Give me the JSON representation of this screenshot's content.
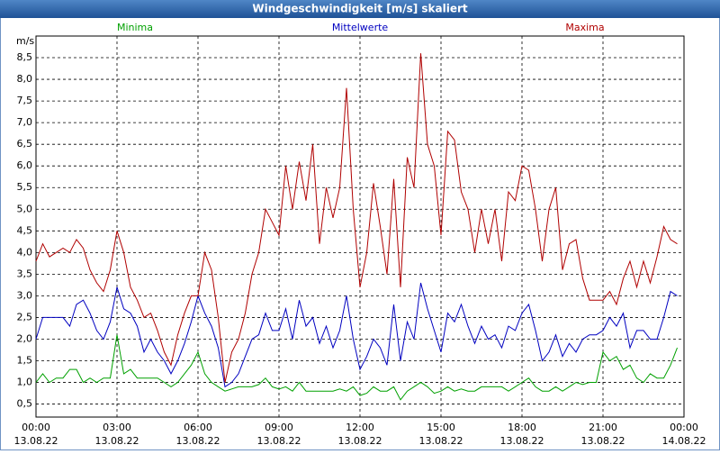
{
  "chart_data": {
    "type": "line",
    "title": "Windgeschwindigkeit [m/s] skaliert",
    "y_unit": "m/s",
    "x": [
      0,
      0.25,
      0.5,
      0.75,
      1,
      1.25,
      1.5,
      1.75,
      2,
      2.25,
      2.5,
      2.75,
      3,
      3.25,
      3.5,
      3.75,
      4,
      4.25,
      4.5,
      4.75,
      5,
      5.25,
      5.5,
      5.75,
      6,
      6.25,
      6.5,
      6.75,
      7,
      7.25,
      7.5,
      7.75,
      8,
      8.25,
      8.5,
      8.75,
      9,
      9.25,
      9.5,
      9.75,
      10,
      10.25,
      10.5,
      10.75,
      11,
      11.25,
      11.5,
      11.75,
      12,
      12.25,
      12.5,
      12.75,
      13,
      13.25,
      13.5,
      13.75,
      14,
      14.25,
      14.5,
      14.75,
      15,
      15.25,
      15.5,
      15.75,
      16,
      16.25,
      16.5,
      16.75,
      17,
      17.25,
      17.5,
      17.75,
      18,
      18.25,
      18.5,
      18.75,
      19,
      19.25,
      19.5,
      19.75,
      20,
      20.25,
      20.5,
      20.75,
      21,
      21.25,
      21.5,
      21.75,
      22,
      22.25,
      22.5,
      22.75,
      23,
      23.25,
      23.5,
      23.75
    ],
    "series": [
      {
        "name": "Minima",
        "color": "#00a000",
        "values": [
          1.0,
          1.2,
          1.0,
          1.1,
          1.1,
          1.3,
          1.3,
          1.0,
          1.1,
          1.0,
          1.1,
          1.1,
          2.1,
          1.2,
          1.3,
          1.1,
          1.1,
          1.1,
          1.1,
          1.0,
          0.9,
          1.0,
          1.2,
          1.4,
          1.7,
          1.2,
          1.0,
          0.9,
          0.8,
          0.85,
          0.9,
          0.9,
          0.9,
          0.95,
          1.1,
          0.9,
          0.85,
          0.9,
          0.8,
          1.0,
          0.8,
          0.8,
          0.8,
          0.8,
          0.8,
          0.85,
          0.8,
          0.9,
          0.7,
          0.75,
          0.9,
          0.8,
          0.8,
          0.9,
          0.6,
          0.8,
          0.9,
          1.0,
          0.9,
          0.75,
          0.8,
          0.9,
          0.8,
          0.85,
          0.8,
          0.8,
          0.9,
          0.9,
          0.9,
          0.9,
          0.8,
          0.9,
          1.0,
          1.1,
          0.9,
          0.8,
          0.8,
          0.9,
          0.8,
          0.9,
          1.0,
          0.95,
          1.0,
          1.0,
          1.7,
          1.5,
          1.6,
          1.3,
          1.4,
          1.1,
          1.0,
          1.2,
          1.1,
          1.1,
          1.4,
          1.8
        ]
      },
      {
        "name": "Mittelwerte",
        "color": "#0000c0",
        "values": [
          2.0,
          2.5,
          2.5,
          2.5,
          2.5,
          2.3,
          2.8,
          2.9,
          2.6,
          2.2,
          2.0,
          2.4,
          3.2,
          2.7,
          2.6,
          2.3,
          1.7,
          2.0,
          1.7,
          1.5,
          1.2,
          1.5,
          1.9,
          2.4,
          3.0,
          2.6,
          2.3,
          1.8,
          0.9,
          1.0,
          1.2,
          1.6,
          2.0,
          2.1,
          2.6,
          2.2,
          2.2,
          2.7,
          2.0,
          2.9,
          2.3,
          2.5,
          1.9,
          2.3,
          1.8,
          2.2,
          3.0,
          2.0,
          1.3,
          1.6,
          2.0,
          1.8,
          1.4,
          2.8,
          1.5,
          2.4,
          2.0,
          3.3,
          2.7,
          2.2,
          1.7,
          2.6,
          2.4,
          2.8,
          2.3,
          1.9,
          2.3,
          2.0,
          2.1,
          1.8,
          2.3,
          2.2,
          2.6,
          2.8,
          2.2,
          1.5,
          1.7,
          2.1,
          1.6,
          1.9,
          1.7,
          2.0,
          2.1,
          2.1,
          2.2,
          2.5,
          2.3,
          2.6,
          1.8,
          2.2,
          2.2,
          2.0,
          2.0,
          2.5,
          3.1,
          3.0
        ]
      },
      {
        "name": "Maxima",
        "color": "#b00000",
        "values": [
          3.8,
          4.2,
          3.9,
          4.0,
          4.1,
          4.0,
          4.3,
          4.1,
          3.6,
          3.3,
          3.1,
          3.6,
          4.5,
          4.0,
          3.2,
          2.9,
          2.5,
          2.6,
          2.2,
          1.7,
          1.4,
          2.1,
          2.6,
          3.0,
          3.0,
          4.0,
          3.6,
          2.5,
          1.0,
          1.7,
          2.0,
          2.6,
          3.5,
          4.0,
          5.0,
          4.7,
          4.4,
          6.0,
          5.0,
          6.1,
          5.2,
          6.5,
          4.2,
          5.5,
          4.8,
          5.5,
          7.8,
          5.0,
          3.2,
          4.0,
          5.6,
          4.6,
          3.5,
          5.7,
          3.2,
          6.2,
          5.5,
          8.6,
          6.5,
          6.0,
          4.4,
          6.8,
          6.6,
          5.4,
          5.0,
          4.0,
          5.0,
          4.2,
          5.0,
          3.8,
          5.4,
          5.2,
          6.0,
          5.9,
          5.0,
          3.8,
          5.0,
          5.5,
          3.6,
          4.2,
          4.3,
          3.4,
          2.9,
          2.9,
          2.9,
          3.1,
          2.8,
          3.4,
          3.8,
          3.2,
          3.8,
          3.3,
          3.9,
          4.6,
          4.3,
          4.2
        ]
      }
    ],
    "xlim": [
      0,
      24
    ],
    "xticks": [
      {
        "value": 0,
        "label": "00:00"
      },
      {
        "value": 3,
        "label": "03:00"
      },
      {
        "value": 6,
        "label": "06:00"
      },
      {
        "value": 9,
        "label": "09:00"
      },
      {
        "value": 12,
        "label": "12:00"
      },
      {
        "value": 15,
        "label": "15:00"
      },
      {
        "value": 18,
        "label": "18:00"
      },
      {
        "value": 21,
        "label": "21:00"
      },
      {
        "value": 24,
        "label": "00:00"
      }
    ],
    "xtick_dates": [
      "13.08.22",
      "13.08.22",
      "13.08.22",
      "13.08.22",
      "13.08.22",
      "13.08.22",
      "13.08.22",
      "13.08.22",
      "14.08.22"
    ],
    "ylim": [
      0.2,
      9.0
    ],
    "yticks": [
      {
        "value": 0.5,
        "label": "0,5"
      },
      {
        "value": 1,
        "label": "1,0"
      },
      {
        "value": 1.5,
        "label": "1,5"
      },
      {
        "value": 2,
        "label": "2,0"
      },
      {
        "value": 2.5,
        "label": "2,5"
      },
      {
        "value": 3,
        "label": "3,0"
      },
      {
        "value": 3.5,
        "label": "3,5"
      },
      {
        "value": 4,
        "label": "4,0"
      },
      {
        "value": 4.5,
        "label": "4,5"
      },
      {
        "value": 5,
        "label": "5,0"
      },
      {
        "value": 5.5,
        "label": "5,5"
      },
      {
        "value": 6,
        "label": "6,0"
      },
      {
        "value": 6.5,
        "label": "6,5"
      },
      {
        "value": 7,
        "label": "7,0"
      },
      {
        "value": 7.5,
        "label": "7,5"
      },
      {
        "value": 8,
        "label": "8,0"
      },
      {
        "value": 8.5,
        "label": "8,5"
      }
    ],
    "grid": true
  }
}
